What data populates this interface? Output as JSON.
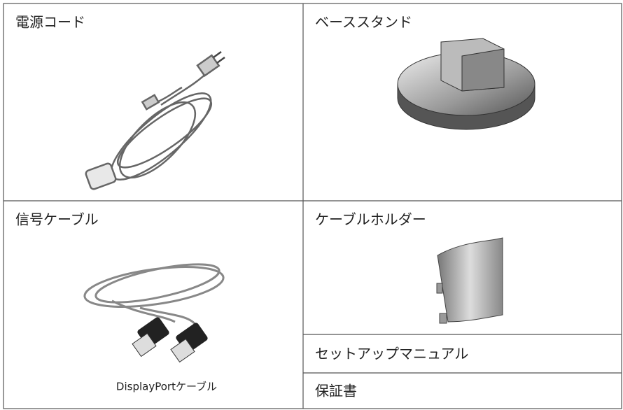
{
  "items": [
    {
      "label": "電源コード"
    },
    {
      "label": "ベーススタンド"
    },
    {
      "label": "信号ケーブル",
      "caption": "DisplayPortケーブル"
    },
    {
      "label": "ケーブルホルダー"
    },
    {
      "label": "セットアップマニュアル"
    },
    {
      "label": "保証書"
    }
  ]
}
